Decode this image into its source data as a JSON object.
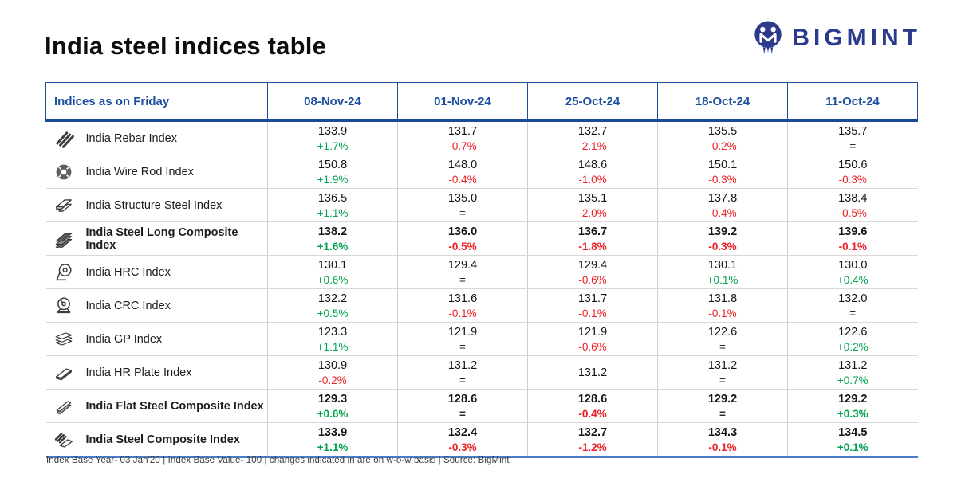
{
  "page": {
    "title": "India steel indices table"
  },
  "logo": {
    "wordmark": "BIGMINT",
    "color": "#2b3a8c",
    "icon": "bigmint-logo-icon"
  },
  "colors": {
    "header_blue": "#1b4fa0",
    "positive_green": "#00a34e",
    "negative_red": "#ea2127",
    "neutral_dark": "#2b2b2b",
    "table_bottom_blue": "#4a7dc9",
    "logo_navy": "#2b3a8c"
  },
  "table": {
    "header": {
      "label": "Indices as on Friday",
      "dates": [
        "08-Nov-24",
        "01-Nov-24",
        "25-Oct-24",
        "18-Oct-24",
        "11-Oct-24"
      ]
    },
    "rows": [
      {
        "name": "India Rebar Index",
        "icon": "rebar-icon",
        "bold": false,
        "cells": [
          {
            "value": "133.9",
            "change": "+1.7%",
            "dir": "up"
          },
          {
            "value": "131.7",
            "change": "-0.7%",
            "dir": "down"
          },
          {
            "value": "132.7",
            "change": "-2.1%",
            "dir": "down"
          },
          {
            "value": "135.5",
            "change": "-0.2%",
            "dir": "down"
          },
          {
            "value": "135.7",
            "change": "=",
            "dir": "flat"
          }
        ]
      },
      {
        "name": "India Wire Rod Index",
        "icon": "wire-rod-icon",
        "bold": false,
        "cells": [
          {
            "value": "150.8",
            "change": "+1.9%",
            "dir": "up"
          },
          {
            "value": "148.0",
            "change": "-0.4%",
            "dir": "down"
          },
          {
            "value": "148.6",
            "change": "-1.0%",
            "dir": "down"
          },
          {
            "value": "150.1",
            "change": "-0.3%",
            "dir": "down"
          },
          {
            "value": "150.6",
            "change": "-0.3%",
            "dir": "down"
          }
        ]
      },
      {
        "name": "India Structure Steel Index",
        "icon": "structure-steel-icon",
        "bold": false,
        "cells": [
          {
            "value": "136.5",
            "change": "+1.1%",
            "dir": "up"
          },
          {
            "value": "135.0",
            "change": "=",
            "dir": "flat"
          },
          {
            "value": "135.1",
            "change": "-2.0%",
            "dir": "down"
          },
          {
            "value": "137.8",
            "change": "-0.4%",
            "dir": "down"
          },
          {
            "value": "138.4",
            "change": "-0.5%",
            "dir": "down"
          }
        ]
      },
      {
        "name": "India Steel Long Composite Index",
        "icon": "long-composite-icon",
        "bold": true,
        "cells": [
          {
            "value": "138.2",
            "change": "+1.6%",
            "dir": "up"
          },
          {
            "value": "136.0",
            "change": "-0.5%",
            "dir": "down"
          },
          {
            "value": "136.7",
            "change": "-1.8%",
            "dir": "down"
          },
          {
            "value": "139.2",
            "change": "-0.3%",
            "dir": "down"
          },
          {
            "value": "139.6",
            "change": "-0.1%",
            "dir": "down"
          }
        ]
      },
      {
        "name": "India HRC Index",
        "icon": "hrc-coil-icon",
        "bold": false,
        "cells": [
          {
            "value": "130.1",
            "change": "+0.6%",
            "dir": "up"
          },
          {
            "value": "129.4",
            "change": "=",
            "dir": "flat"
          },
          {
            "value": "129.4",
            "change": "-0.6%",
            "dir": "down"
          },
          {
            "value": "130.1",
            "change": "+0.1%",
            "dir": "up"
          },
          {
            "value": "130.0",
            "change": "+0.4%",
            "dir": "up"
          }
        ]
      },
      {
        "name": "India CRC Index",
        "icon": "crc-coil-icon",
        "bold": false,
        "cells": [
          {
            "value": "132.2",
            "change": "+0.5%",
            "dir": "up"
          },
          {
            "value": "131.6",
            "change": "-0.1%",
            "dir": "down"
          },
          {
            "value": "131.7",
            "change": "-0.1%",
            "dir": "down"
          },
          {
            "value": "131.8",
            "change": "-0.1%",
            "dir": "down"
          },
          {
            "value": "132.0",
            "change": "=",
            "dir": "flat"
          }
        ]
      },
      {
        "name": "India GP Index",
        "icon": "gp-sheets-icon",
        "bold": false,
        "cells": [
          {
            "value": "123.3",
            "change": "+1.1%",
            "dir": "up"
          },
          {
            "value": "121.9",
            "change": "=",
            "dir": "flat"
          },
          {
            "value": "121.9",
            "change": "-0.6%",
            "dir": "down"
          },
          {
            "value": "122.6",
            "change": "=",
            "dir": "flat"
          },
          {
            "value": "122.6",
            "change": "+0.2%",
            "dir": "up"
          }
        ]
      },
      {
        "name": "India HR Plate Index",
        "icon": "hr-plate-icon",
        "bold": false,
        "cells": [
          {
            "value": "130.9",
            "change": "-0.2%",
            "dir": "down"
          },
          {
            "value": "131.2",
            "change": "=",
            "dir": "flat"
          },
          {
            "value": "131.2",
            "change": "",
            "dir": "none"
          },
          {
            "value": "131.2",
            "change": "=",
            "dir": "flat"
          },
          {
            "value": "131.2",
            "change": "+0.7%",
            "dir": "up"
          }
        ]
      },
      {
        "name": "India Flat Steel Composite Index",
        "icon": "flat-composite-icon",
        "bold": true,
        "cells": [
          {
            "value": "129.3",
            "change": "+0.6%",
            "dir": "up"
          },
          {
            "value": "128.6",
            "change": "=",
            "dir": "flat"
          },
          {
            "value": "128.6",
            "change": "-0.4%",
            "dir": "down"
          },
          {
            "value": "129.2",
            "change": "=",
            "dir": "flat"
          },
          {
            "value": "129.2",
            "change": "+0.3%",
            "dir": "up"
          }
        ]
      },
      {
        "name": "India Steel Composite Index",
        "icon": "steel-composite-icon",
        "bold": true,
        "cells": [
          {
            "value": "133.9",
            "change": "+1.1%",
            "dir": "up"
          },
          {
            "value": "132.4",
            "change": "-0.3%",
            "dir": "down"
          },
          {
            "value": "132.7",
            "change": "-1.2%",
            "dir": "down"
          },
          {
            "value": "134.3",
            "change": "-0.1%",
            "dir": "down"
          },
          {
            "value": "134.5",
            "change": "+0.1%",
            "dir": "up"
          }
        ]
      }
    ]
  },
  "footer": {
    "note": "Index Base Year- 03 Jan'20 | Index Base Value- 100 | changes indicated in are on w-o-w basis | Source: BigMint"
  },
  "chart_data": {
    "type": "table",
    "title": "India steel indices table",
    "columns": [
      "Indices as on Friday",
      "08-Nov-24",
      "01-Nov-24",
      "25-Oct-24",
      "18-Oct-24",
      "11-Oct-24"
    ],
    "series": [
      {
        "name": "India Rebar Index",
        "values": [
          133.9,
          131.7,
          132.7,
          135.5,
          135.7
        ],
        "wow_changes": [
          "+1.7%",
          "-0.7%",
          "-2.1%",
          "-0.2%",
          "="
        ]
      },
      {
        "name": "India Wire Rod Index",
        "values": [
          150.8,
          148.0,
          148.6,
          150.1,
          150.6
        ],
        "wow_changes": [
          "+1.9%",
          "-0.4%",
          "-1.0%",
          "-0.3%",
          "-0.3%"
        ]
      },
      {
        "name": "India Structure Steel Index",
        "values": [
          136.5,
          135.0,
          135.1,
          137.8,
          138.4
        ],
        "wow_changes": [
          "+1.1%",
          "=",
          "-2.0%",
          "-0.4%",
          "-0.5%"
        ]
      },
      {
        "name": "India Steel Long Composite Index",
        "values": [
          138.2,
          136.0,
          136.7,
          139.2,
          139.6
        ],
        "wow_changes": [
          "+1.6%",
          "-0.5%",
          "-1.8%",
          "-0.3%",
          "-0.1%"
        ]
      },
      {
        "name": "India HRC Index",
        "values": [
          130.1,
          129.4,
          129.4,
          130.1,
          130.0
        ],
        "wow_changes": [
          "+0.6%",
          "=",
          "-0.6%",
          "+0.1%",
          "+0.4%"
        ]
      },
      {
        "name": "India CRC Index",
        "values": [
          132.2,
          131.6,
          131.7,
          131.8,
          132.0
        ],
        "wow_changes": [
          "+0.5%",
          "-0.1%",
          "-0.1%",
          "-0.1%",
          "="
        ]
      },
      {
        "name": "India GP Index",
        "values": [
          123.3,
          121.9,
          121.9,
          122.6,
          122.6
        ],
        "wow_changes": [
          "+1.1%",
          "=",
          "-0.6%",
          "=",
          "+0.2%"
        ]
      },
      {
        "name": "India HR Plate Index",
        "values": [
          130.9,
          131.2,
          131.2,
          131.2,
          131.2
        ],
        "wow_changes": [
          "-0.2%",
          "=",
          "",
          "=",
          "+0.7%"
        ]
      },
      {
        "name": "India Flat Steel Composite Index",
        "values": [
          129.3,
          128.6,
          128.6,
          129.2,
          129.2
        ],
        "wow_changes": [
          "+0.6%",
          "=",
          "-0.4%",
          "=",
          "+0.3%"
        ]
      },
      {
        "name": "India Steel Composite Index",
        "values": [
          133.9,
          132.4,
          132.7,
          134.3,
          134.5
        ],
        "wow_changes": [
          "+1.1%",
          "-0.3%",
          "-1.2%",
          "-0.1%",
          "+0.1%"
        ]
      }
    ]
  }
}
